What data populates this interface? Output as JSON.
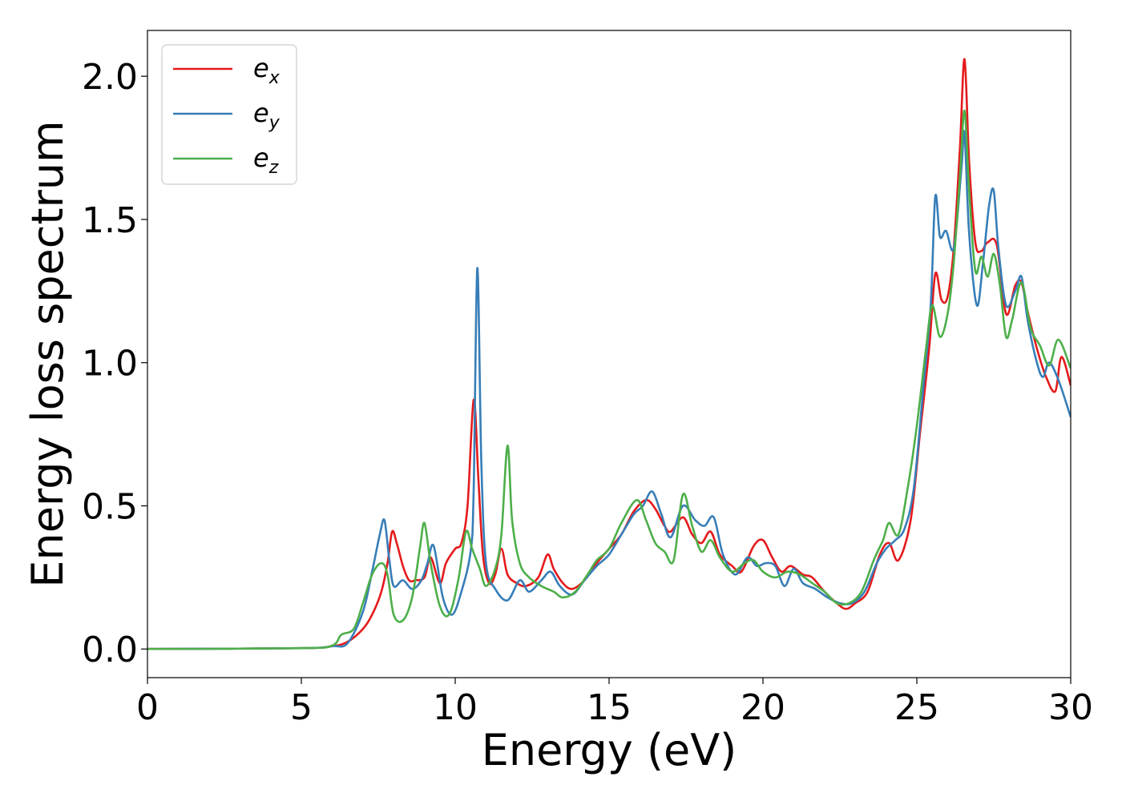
{
  "chart_data": {
    "type": "line",
    "title": "",
    "xlabel": "Energy (eV)",
    "ylabel": "Energy loss spectrum",
    "xlim": [
      0,
      30
    ],
    "ylim": [
      -0.1,
      2.16
    ],
    "xticks": [
      0,
      5,
      10,
      15,
      20,
      25,
      30
    ],
    "xtick_labels": [
      "0",
      "5",
      "10",
      "15",
      "20",
      "25",
      "30"
    ],
    "yticks": [
      0.0,
      0.5,
      1.0,
      1.5,
      2.0
    ],
    "ytick_labels": [
      "0.0",
      "0.5",
      "1.0",
      "1.5",
      "2.0"
    ],
    "grid": false,
    "legend_position": "top-left",
    "series": [
      {
        "name": "e_x",
        "legend_main": "e",
        "legend_sub": "x",
        "color": "#e41a1c",
        "points": [
          [
            0,
            0
          ],
          [
            5,
            0.003
          ],
          [
            6,
            0.01
          ],
          [
            6.5,
            0.025
          ],
          [
            7,
            0.07
          ],
          [
            7.3,
            0.12
          ],
          [
            7.6,
            0.2
          ],
          [
            7.8,
            0.3
          ],
          [
            7.95,
            0.41
          ],
          [
            8.1,
            0.37
          ],
          [
            8.3,
            0.29
          ],
          [
            8.5,
            0.24
          ],
          [
            8.7,
            0.24
          ],
          [
            9.0,
            0.25
          ],
          [
            9.2,
            0.32
          ],
          [
            9.5,
            0.23
          ],
          [
            9.7,
            0.3
          ],
          [
            10.0,
            0.35
          ],
          [
            10.2,
            0.37
          ],
          [
            10.4,
            0.5
          ],
          [
            10.6,
            0.87
          ],
          [
            10.75,
            0.6
          ],
          [
            10.9,
            0.33
          ],
          [
            11.1,
            0.23
          ],
          [
            11.3,
            0.26
          ],
          [
            11.5,
            0.35
          ],
          [
            11.7,
            0.26
          ],
          [
            12.0,
            0.23
          ],
          [
            12.3,
            0.22
          ],
          [
            12.7,
            0.25
          ],
          [
            13.0,
            0.33
          ],
          [
            13.2,
            0.28
          ],
          [
            13.5,
            0.23
          ],
          [
            13.8,
            0.21
          ],
          [
            14.2,
            0.24
          ],
          [
            14.6,
            0.3
          ],
          [
            15.0,
            0.35
          ],
          [
            15.4,
            0.4
          ],
          [
            15.8,
            0.48
          ],
          [
            16.2,
            0.52
          ],
          [
            16.5,
            0.49
          ],
          [
            16.8,
            0.43
          ],
          [
            17.0,
            0.41
          ],
          [
            17.4,
            0.46
          ],
          [
            17.7,
            0.4
          ],
          [
            18.0,
            0.37
          ],
          [
            18.3,
            0.41
          ],
          [
            18.6,
            0.33
          ],
          [
            19.0,
            0.29
          ],
          [
            19.3,
            0.27
          ],
          [
            19.7,
            0.36
          ],
          [
            20.0,
            0.38
          ],
          [
            20.3,
            0.32
          ],
          [
            20.6,
            0.27
          ],
          [
            20.9,
            0.29
          ],
          [
            21.3,
            0.26
          ],
          [
            21.6,
            0.25
          ],
          [
            22.0,
            0.2
          ],
          [
            22.4,
            0.16
          ],
          [
            22.7,
            0.14
          ],
          [
            23.0,
            0.16
          ],
          [
            23.4,
            0.2
          ],
          [
            23.8,
            0.33
          ],
          [
            24.1,
            0.37
          ],
          [
            24.4,
            0.31
          ],
          [
            24.8,
            0.45
          ],
          [
            25.1,
            0.75
          ],
          [
            25.4,
            1.05
          ],
          [
            25.6,
            1.31
          ],
          [
            25.8,
            1.22
          ],
          [
            26.0,
            1.23
          ],
          [
            26.2,
            1.4
          ],
          [
            26.4,
            1.75
          ],
          [
            26.55,
            2.06
          ],
          [
            26.7,
            1.7
          ],
          [
            26.9,
            1.42
          ],
          [
            27.1,
            1.39
          ],
          [
            27.3,
            1.42
          ],
          [
            27.6,
            1.41
          ],
          [
            27.9,
            1.17
          ],
          [
            28.2,
            1.27
          ],
          [
            28.4,
            1.28
          ],
          [
            28.6,
            1.18
          ],
          [
            28.9,
            1.05
          ],
          [
            29.2,
            0.95
          ],
          [
            29.5,
            0.9
          ],
          [
            29.7,
            1.02
          ],
          [
            30.0,
            0.92
          ]
        ]
      },
      {
        "name": "e_y",
        "legend_main": "e",
        "legend_sub": "y",
        "color": "#377eb8",
        "points": [
          [
            0,
            0
          ],
          [
            5,
            0.003
          ],
          [
            6,
            0.01
          ],
          [
            6.5,
            0.02
          ],
          [
            7,
            0.13
          ],
          [
            7.3,
            0.27
          ],
          [
            7.55,
            0.4
          ],
          [
            7.7,
            0.45
          ],
          [
            7.85,
            0.32
          ],
          [
            8.0,
            0.22
          ],
          [
            8.3,
            0.24
          ],
          [
            8.6,
            0.21
          ],
          [
            8.9,
            0.24
          ],
          [
            9.1,
            0.3
          ],
          [
            9.3,
            0.36
          ],
          [
            9.6,
            0.18
          ],
          [
            9.9,
            0.12
          ],
          [
            10.2,
            0.2
          ],
          [
            10.5,
            0.34
          ],
          [
            10.6,
            0.55
          ],
          [
            10.72,
            1.33
          ],
          [
            10.85,
            0.65
          ],
          [
            11.0,
            0.3
          ],
          [
            11.3,
            0.21
          ],
          [
            11.7,
            0.17
          ],
          [
            12.1,
            0.24
          ],
          [
            12.4,
            0.2
          ],
          [
            12.8,
            0.24
          ],
          [
            13.1,
            0.27
          ],
          [
            13.4,
            0.22
          ],
          [
            13.8,
            0.19
          ],
          [
            14.2,
            0.24
          ],
          [
            14.6,
            0.29
          ],
          [
            15.0,
            0.33
          ],
          [
            15.4,
            0.4
          ],
          [
            15.8,
            0.47
          ],
          [
            16.1,
            0.5
          ],
          [
            16.4,
            0.55
          ],
          [
            16.7,
            0.47
          ],
          [
            17.0,
            0.39
          ],
          [
            17.4,
            0.5
          ],
          [
            17.8,
            0.45
          ],
          [
            18.1,
            0.43
          ],
          [
            18.4,
            0.46
          ],
          [
            18.7,
            0.33
          ],
          [
            19.1,
            0.26
          ],
          [
            19.5,
            0.32
          ],
          [
            19.8,
            0.29
          ],
          [
            20.1,
            0.3
          ],
          [
            20.4,
            0.29
          ],
          [
            20.7,
            0.22
          ],
          [
            21.0,
            0.28
          ],
          [
            21.3,
            0.23
          ],
          [
            21.7,
            0.21
          ],
          [
            22.1,
            0.18
          ],
          [
            22.5,
            0.16
          ],
          [
            22.9,
            0.16
          ],
          [
            23.3,
            0.2
          ],
          [
            23.7,
            0.3
          ],
          [
            24.0,
            0.35
          ],
          [
            24.3,
            0.38
          ],
          [
            24.6,
            0.42
          ],
          [
            24.9,
            0.56
          ],
          [
            25.2,
            0.9
          ],
          [
            25.45,
            1.2
          ],
          [
            25.6,
            1.58
          ],
          [
            25.75,
            1.44
          ],
          [
            25.95,
            1.46
          ],
          [
            26.2,
            1.4
          ],
          [
            26.45,
            1.68
          ],
          [
            26.55,
            1.8
          ],
          [
            26.7,
            1.45
          ],
          [
            26.95,
            1.2
          ],
          [
            27.15,
            1.35
          ],
          [
            27.35,
            1.55
          ],
          [
            27.5,
            1.6
          ],
          [
            27.65,
            1.4
          ],
          [
            27.9,
            1.2
          ],
          [
            28.2,
            1.25
          ],
          [
            28.4,
            1.3
          ],
          [
            28.6,
            1.15
          ],
          [
            28.9,
            1.0
          ],
          [
            29.1,
            0.95
          ],
          [
            29.3,
            1.0
          ],
          [
            29.6,
            0.94
          ],
          [
            30.0,
            0.81
          ]
        ]
      },
      {
        "name": "e_z",
        "legend_main": "e",
        "legend_sub": "z",
        "color": "#4daf4a",
        "points": [
          [
            0,
            0
          ],
          [
            5,
            0.003
          ],
          [
            6,
            0.012
          ],
          [
            6.3,
            0.05
          ],
          [
            6.7,
            0.07
          ],
          [
            7.0,
            0.16
          ],
          [
            7.3,
            0.26
          ],
          [
            7.6,
            0.3
          ],
          [
            7.8,
            0.26
          ],
          [
            8.0,
            0.12
          ],
          [
            8.3,
            0.1
          ],
          [
            8.6,
            0.18
          ],
          [
            8.85,
            0.35
          ],
          [
            9.0,
            0.44
          ],
          [
            9.2,
            0.3
          ],
          [
            9.5,
            0.15
          ],
          [
            9.8,
            0.12
          ],
          [
            10.1,
            0.24
          ],
          [
            10.35,
            0.41
          ],
          [
            10.55,
            0.35
          ],
          [
            10.8,
            0.28
          ],
          [
            11.0,
            0.22
          ],
          [
            11.3,
            0.28
          ],
          [
            11.5,
            0.4
          ],
          [
            11.7,
            0.71
          ],
          [
            11.85,
            0.45
          ],
          [
            12.1,
            0.3
          ],
          [
            12.4,
            0.25
          ],
          [
            12.8,
            0.22
          ],
          [
            13.2,
            0.2
          ],
          [
            13.5,
            0.18
          ],
          [
            13.9,
            0.2
          ],
          [
            14.3,
            0.26
          ],
          [
            14.6,
            0.31
          ],
          [
            15.0,
            0.35
          ],
          [
            15.4,
            0.44
          ],
          [
            15.9,
            0.52
          ],
          [
            16.2,
            0.45
          ],
          [
            16.5,
            0.37
          ],
          [
            16.8,
            0.34
          ],
          [
            17.1,
            0.31
          ],
          [
            17.4,
            0.54
          ],
          [
            17.7,
            0.43
          ],
          [
            18.0,
            0.34
          ],
          [
            18.3,
            0.38
          ],
          [
            18.6,
            0.32
          ],
          [
            19.0,
            0.27
          ],
          [
            19.4,
            0.3
          ],
          [
            19.7,
            0.31
          ],
          [
            20.0,
            0.27
          ],
          [
            20.4,
            0.25
          ],
          [
            20.8,
            0.27
          ],
          [
            21.2,
            0.26
          ],
          [
            21.6,
            0.23
          ],
          [
            22.0,
            0.2
          ],
          [
            22.4,
            0.16
          ],
          [
            22.8,
            0.16
          ],
          [
            23.2,
            0.2
          ],
          [
            23.6,
            0.31
          ],
          [
            23.9,
            0.38
          ],
          [
            24.1,
            0.44
          ],
          [
            24.4,
            0.4
          ],
          [
            24.7,
            0.56
          ],
          [
            25.0,
            0.78
          ],
          [
            25.3,
            1.05
          ],
          [
            25.5,
            1.2
          ],
          [
            25.75,
            1.09
          ],
          [
            26.0,
            1.17
          ],
          [
            26.2,
            1.35
          ],
          [
            26.4,
            1.65
          ],
          [
            26.55,
            1.88
          ],
          [
            26.7,
            1.6
          ],
          [
            26.9,
            1.32
          ],
          [
            27.1,
            1.37
          ],
          [
            27.3,
            1.3
          ],
          [
            27.5,
            1.38
          ],
          [
            27.7,
            1.27
          ],
          [
            27.9,
            1.09
          ],
          [
            28.1,
            1.15
          ],
          [
            28.4,
            1.28
          ],
          [
            28.7,
            1.12
          ],
          [
            29.0,
            1.06
          ],
          [
            29.3,
            0.99
          ],
          [
            29.6,
            1.08
          ],
          [
            30.0,
            0.98
          ]
        ]
      }
    ]
  }
}
